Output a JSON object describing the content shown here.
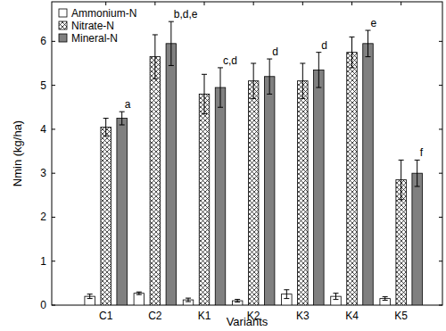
{
  "chart_data": {
    "type": "bar",
    "x_label": "Variants",
    "y_label": "Nmin (kg/ha)",
    "categories": [
      "C1",
      "C2",
      "K1",
      "K2",
      "K3",
      "K4",
      "K5"
    ],
    "series": [
      {
        "name": "Ammonium-N",
        "color": "#ffffff",
        "values": [
          0.2,
          0.27,
          0.12,
          0.1,
          0.25,
          0.2,
          0.15
        ],
        "errors": [
          0.05,
          0.03,
          0.04,
          0.03,
          0.1,
          0.07,
          0.04
        ]
      },
      {
        "name": "Nitrate-N",
        "color": "#ffffff",
        "values": [
          4.05,
          5.65,
          4.8,
          5.1,
          5.1,
          5.75,
          2.85
        ],
        "errors": [
          0.2,
          0.5,
          0.45,
          0.4,
          0.4,
          0.35,
          0.45
        ]
      },
      {
        "name": "Mineral-N",
        "color": "#808080",
        "values": [
          4.25,
          5.95,
          4.95,
          5.2,
          5.35,
          5.95,
          3.0
        ],
        "errors": [
          0.15,
          0.5,
          0.45,
          0.4,
          0.4,
          0.3,
          0.3
        ]
      }
    ],
    "annotations": [
      "a",
      "b,d,e",
      "c,d",
      "d",
      "d",
      "e",
      "f"
    ],
    "ylim": [
      0,
      6.9
    ],
    "yticks": [
      0,
      1,
      2,
      3,
      4,
      5,
      6
    ],
    "legend": "upper-left",
    "grid": false
  }
}
